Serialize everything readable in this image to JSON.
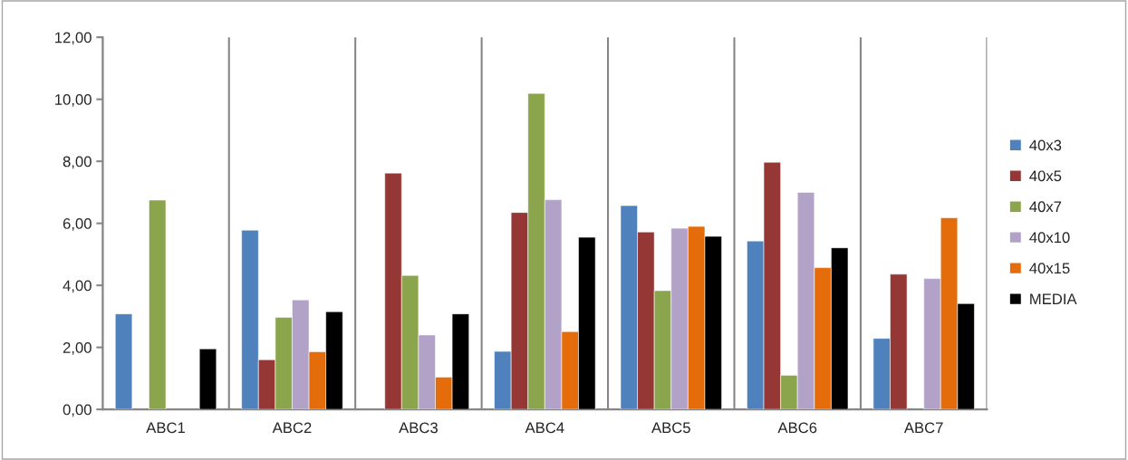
{
  "chart_data": {
    "type": "bar",
    "categories": [
      "ABC1",
      "ABC2",
      "ABC3",
      "ABC4",
      "ABC5",
      "ABC6",
      "ABC7"
    ],
    "series": [
      {
        "name": "40x3",
        "color": "#4f81bd",
        "values": [
          3.08,
          5.78,
          null,
          1.87,
          6.57,
          5.43,
          2.29
        ]
      },
      {
        "name": "40x5",
        "color": "#953735",
        "values": [
          null,
          1.6,
          7.62,
          6.35,
          5.72,
          7.97,
          4.36
        ]
      },
      {
        "name": "40x7",
        "color": "#8aa54c",
        "values": [
          6.75,
          2.97,
          4.32,
          10.19,
          3.83,
          1.1,
          null
        ]
      },
      {
        "name": "40x10",
        "color": "#b3a2c7",
        "values": [
          null,
          3.53,
          2.4,
          6.76,
          5.84,
          7.0,
          4.22
        ]
      },
      {
        "name": "40x15",
        "color": "#e46c0a",
        "values": [
          null,
          1.86,
          1.04,
          2.51,
          5.9,
          4.57,
          6.18
        ]
      },
      {
        "name": "MEDIA",
        "color": "#000000",
        "values": [
          1.95,
          3.15,
          3.08,
          5.55,
          5.58,
          5.21,
          3.41
        ]
      }
    ],
    "ylim": [
      0,
      12
    ],
    "yticks": [
      {
        "value": 0,
        "label": "0,00"
      },
      {
        "value": 2,
        "label": "2,00"
      },
      {
        "value": 4,
        "label": "4,00"
      },
      {
        "value": 6,
        "label": "6,00"
      },
      {
        "value": 8,
        "label": "8,00"
      },
      {
        "value": 10,
        "label": "10,00"
      },
      {
        "value": 12,
        "label": "12,00"
      }
    ],
    "grid": "x",
    "legend": "right"
  }
}
